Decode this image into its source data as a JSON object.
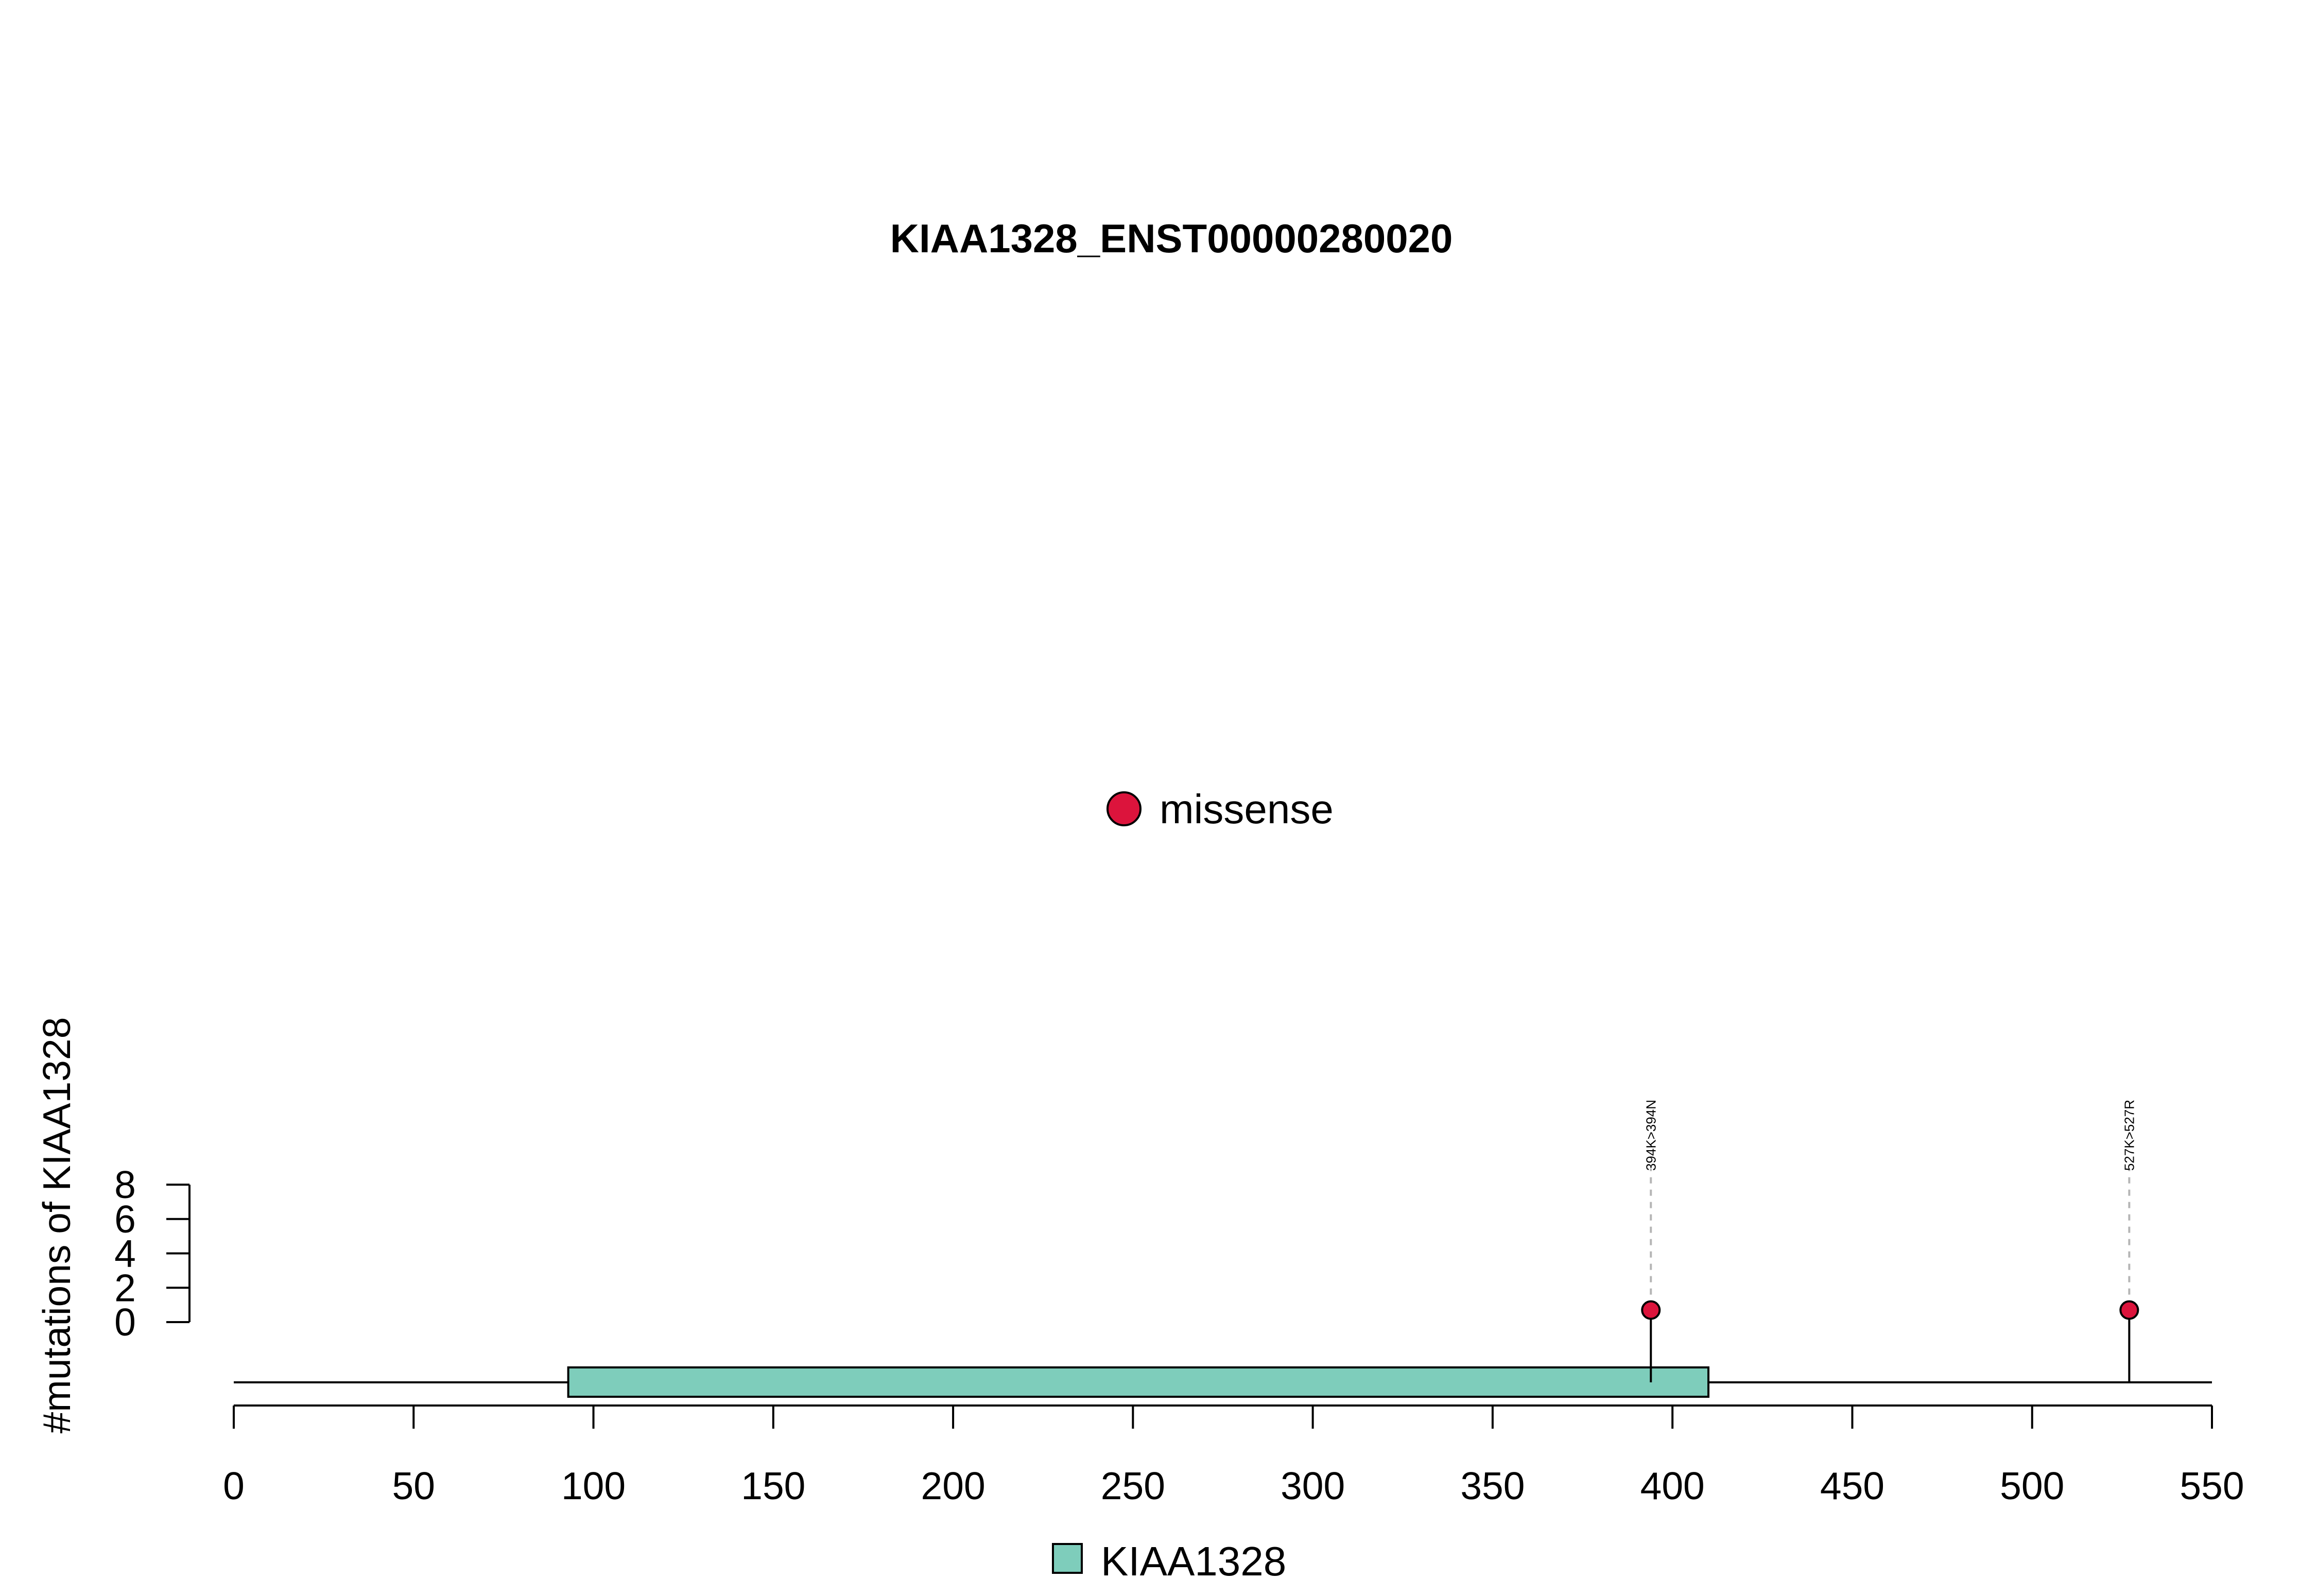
{
  "chart_data": {
    "type": "lollipop",
    "title": "KIAA1328_ENST00000280020",
    "ylabel": "#mutations of KIAA1328",
    "x_ticks": [
      0,
      50,
      100,
      150,
      200,
      250,
      300,
      350,
      400,
      450,
      500,
      550
    ],
    "xlim": [
      0,
      550
    ],
    "y_ticks": [
      0,
      2,
      4,
      6,
      8
    ],
    "ylim": [
      0,
      8
    ],
    "protein_length": 550,
    "domains": [
      {
        "name": "KIAA1328",
        "start": 93,
        "end": 410,
        "color": "#7ecdbb"
      }
    ],
    "mutations": [
      {
        "position": 394,
        "count": 1,
        "label": "394K>394N",
        "type": "missense"
      },
      {
        "position": 527,
        "count": 1,
        "label": "527K>527R",
        "type": "missense"
      }
    ],
    "mutation_legend": [
      {
        "label": "missense",
        "color": "#dc143c"
      }
    ],
    "domain_legend": [
      {
        "label": "KIAA1328",
        "color": "#7ecdbb"
      }
    ]
  }
}
